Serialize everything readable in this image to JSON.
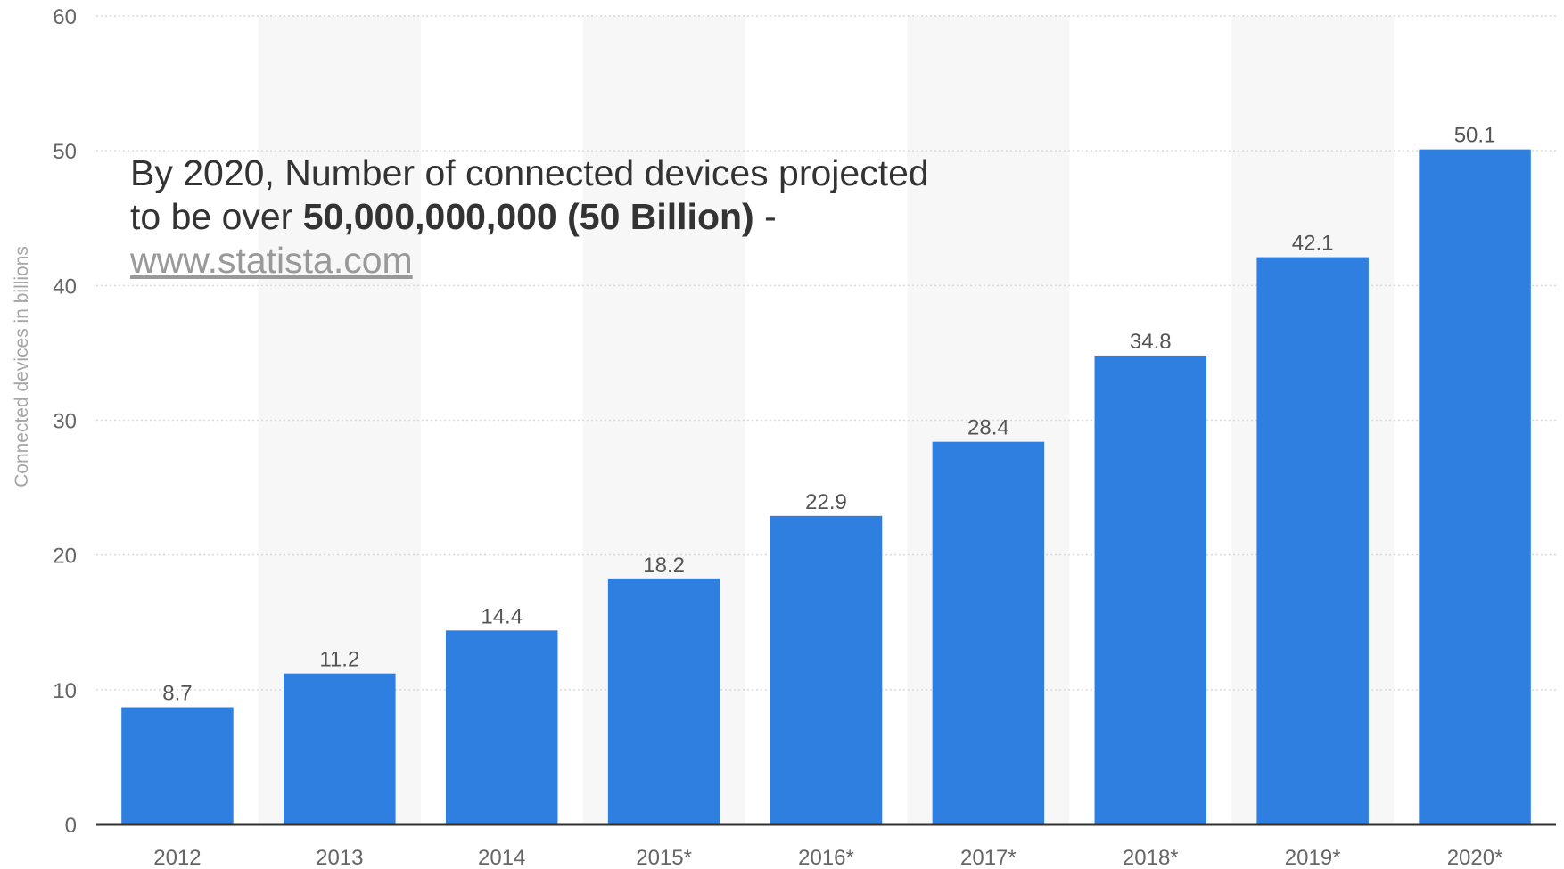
{
  "chart_data": {
    "type": "bar",
    "categories": [
      "2012",
      "2013",
      "2014",
      "2015*",
      "2016*",
      "2017*",
      "2018*",
      "2019*",
      "2020*"
    ],
    "values": [
      8.7,
      11.2,
      14.4,
      18.2,
      22.9,
      28.4,
      34.8,
      42.1,
      50.1
    ],
    "data_labels": [
      "8.7",
      "11.2",
      "14.4",
      "18.2",
      "22.9",
      "28.4",
      "34.8",
      "42.1",
      "50.1"
    ],
    "ylabel": "Connected devices in billions",
    "ylim": [
      0,
      60
    ],
    "yticks": [
      "0",
      "10",
      "20",
      "30",
      "40",
      "50",
      "60"
    ],
    "grid": true,
    "bar_color": "#2e7fe0",
    "band_color": "#f7f7f7",
    "annotation": {
      "line1": "By 2020, Number of connected devices projected",
      "line2_prefix": "to be over ",
      "line2_bold": "50,000,000,000 (50 Billion)",
      "line2_suffix": " -",
      "link": "www.statista.com"
    }
  }
}
